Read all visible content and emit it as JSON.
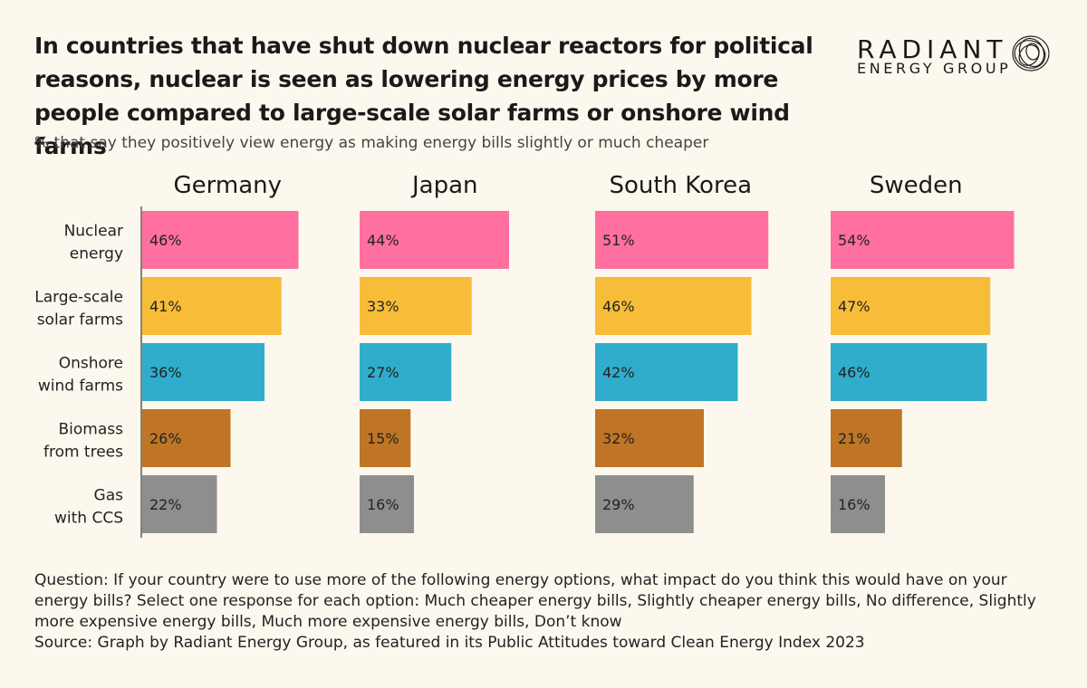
{
  "header": {
    "title": "In countries that have shut down nuclear reactors for political reasons, nuclear is seen as lowering energy prices by more people compared to large-scale solar farms or onshore wind farms",
    "subtitle": "% that say they positively view energy as making energy bills slightly or much cheaper"
  },
  "logo": {
    "word": "RADIANT",
    "sub": "ENERGY GROUP"
  },
  "chart_data": {
    "type": "bar",
    "orientation": "horizontal",
    "categories": [
      "Nuclear energy",
      "Large-scale solar farms",
      "Onshore wind farms",
      "Biomass from trees",
      "Gas with CCS"
    ],
    "category_labels": [
      [
        "Nuclear",
        "energy"
      ],
      [
        "Large-scale",
        "solar farms"
      ],
      [
        "Onshore",
        "wind farms"
      ],
      [
        "Biomass",
        "from trees"
      ],
      [
        "Gas",
        "with CCS"
      ]
    ],
    "colors": [
      "#ff6f9f",
      "#f7bd38",
      "#30adcc",
      "#bf7525",
      "#8e8e8e"
    ],
    "panels": [
      {
        "name": "Germany",
        "values": [
          46,
          41,
          36,
          26,
          22
        ]
      },
      {
        "name": "Japan",
        "values": [
          44,
          33,
          27,
          15,
          16
        ]
      },
      {
        "name": "South Korea",
        "values": [
          51,
          46,
          42,
          32,
          29
        ]
      },
      {
        "name": "Sweden",
        "values": [
          54,
          47,
          46,
          21,
          16
        ]
      }
    ],
    "value_suffix": "%",
    "grid": false,
    "legend": "none"
  },
  "notes": {
    "question": "Question: If your country were to use more of the following energy options, what impact do you think this would have on your energy bills? Select one response for each option: Much cheaper energy bills, Slightly cheaper energy bills, No difference, Slightly more expensive energy bills, Much more expensive energy bills, Don’t know",
    "source": "Source: Graph by Radiant Energy Group, as featured in its Public Attitudes toward Clean Energy Index 2023"
  }
}
